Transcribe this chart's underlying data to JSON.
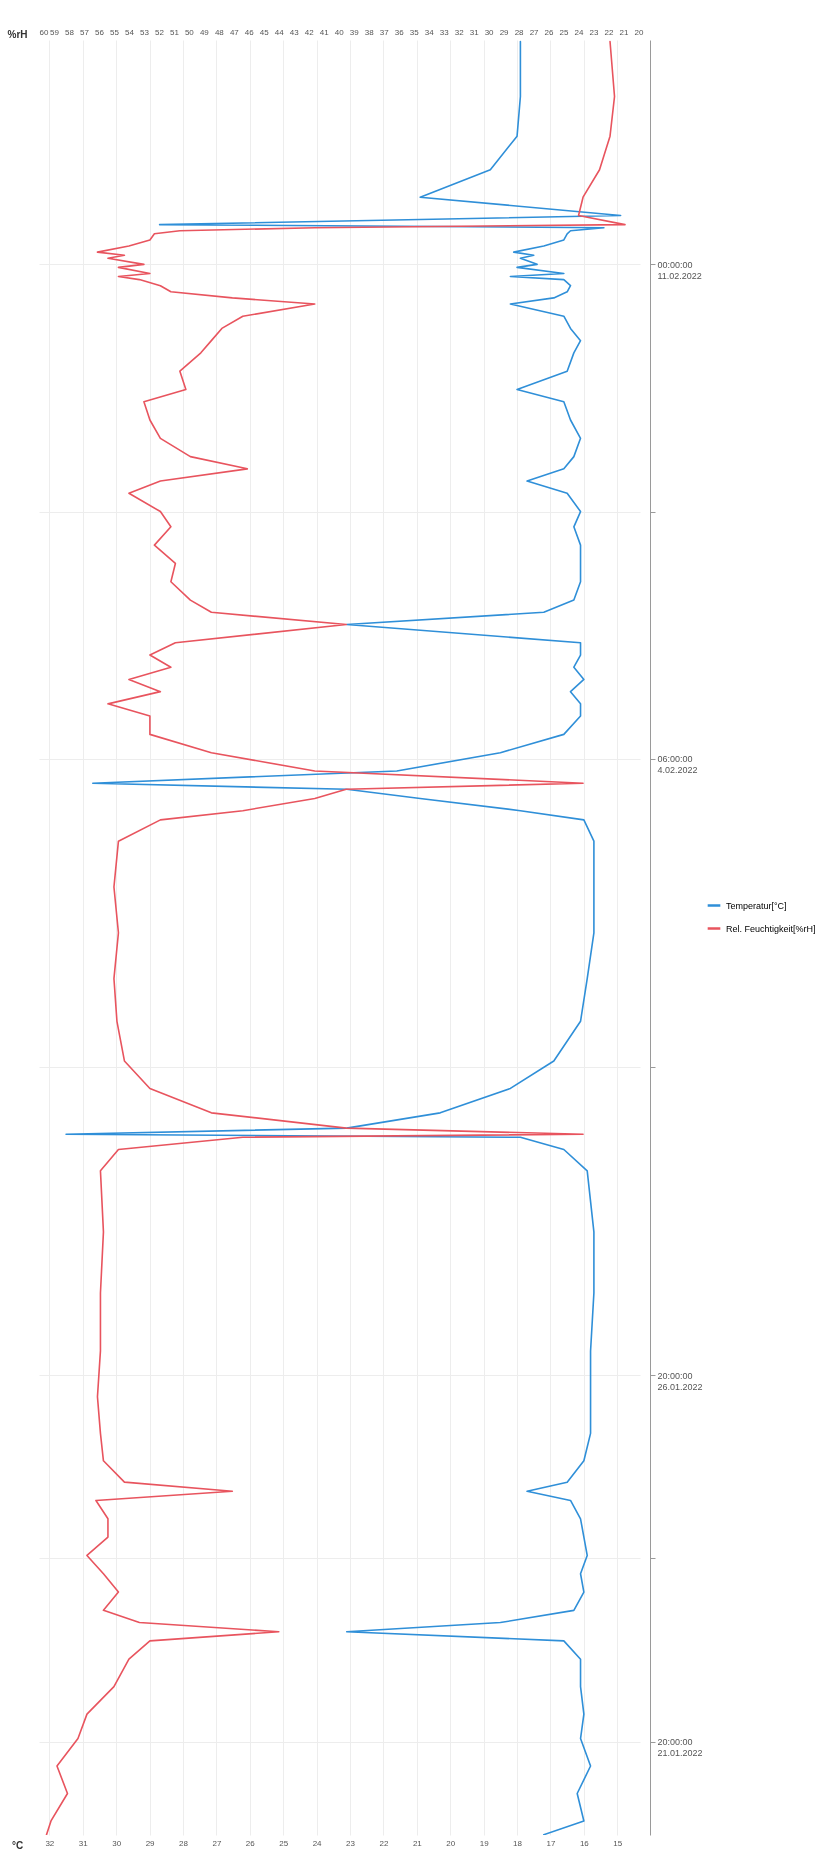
{
  "chart_data": {
    "type": "line",
    "orientation": "horizontal",
    "xlabel": "°C",
    "x2label": "%rH",
    "legend": "right",
    "grid": true,
    "x": [
      "2022-01-20T13:30",
      "2022-01-20T18:00",
      "2022-01-21T03:00",
      "2022-01-21T12:00",
      "2022-01-21T21:00",
      "2022-01-22T05:00",
      "2022-01-22T14:00",
      "2022-01-22T23:00",
      "2022-01-23T05:00",
      "2022-01-23T08:00",
      "2022-01-23T11:00",
      "2022-01-23T15:00",
      "2022-01-23T21:00",
      "2022-01-24T03:00",
      "2022-01-24T09:00",
      "2022-01-24T15:00",
      "2022-01-24T21:00",
      "2022-01-25T03:00",
      "2022-01-25T06:00",
      "2022-01-25T09:00",
      "2022-01-25T16:00",
      "2022-01-26T01:00",
      "2022-01-26T13:00",
      "2022-01-27T04:00",
      "2022-01-27T23:00",
      "2022-01-28T19:00",
      "2022-01-29T15:00",
      "2022-01-29T22:00",
      "2022-01-30T02:00",
      "2022-01-30T03:00",
      "2022-01-30T05:00",
      "2022-01-30T10:00",
      "2022-01-30T18:00",
      "2022-01-31T03:00",
      "2022-01-31T16:00",
      "2022-02-01T06:00",
      "2022-02-01T21:00",
      "2022-02-02T12:00",
      "2022-02-03T03:00",
      "2022-02-03T10:00",
      "2022-02-03T13:00",
      "2022-02-03T17:00",
      "2022-02-03T20:00",
      "2022-02-03T22:00",
      "2022-02-04T02:00",
      "2022-02-04T08:00",
      "2022-02-04T14:00",
      "2022-02-04T20:00",
      "2022-02-05T00:00",
      "2022-02-05T04:00",
      "2022-02-05T08:00",
      "2022-02-05T12:00",
      "2022-02-05T16:00",
      "2022-02-05T20:00",
      "2022-02-06T02:00",
      "2022-02-06T06:00",
      "2022-02-06T10:00",
      "2022-02-06T16:00",
      "2022-02-06T22:00",
      "2022-02-07T04:00",
      "2022-02-07T10:00",
      "2022-02-07T15:00",
      "2022-02-07T21:00",
      "2022-02-08T01:00",
      "2022-02-08T05:00",
      "2022-02-08T09:00",
      "2022-02-08T15:00",
      "2022-02-08T21:00",
      "2022-02-09T03:00",
      "2022-02-09T07:00",
      "2022-02-09T13:00",
      "2022-02-09T19:00",
      "2022-02-09T23:00",
      "2022-02-10T03:00",
      "2022-02-10T07:00",
      "2022-02-10T11:00",
      "2022-02-10T13:00",
      "2022-02-10T15:00",
      "2022-02-10T17:00",
      "2022-02-10T19:00",
      "2022-02-10T20:00",
      "2022-02-10T21:00",
      "2022-02-10T23:00",
      "2022-02-11T00:00",
      "2022-02-11T02:00",
      "2022-02-11T03:00",
      "2022-02-11T04:00",
      "2022-02-11T06:00",
      "2022-02-11T08:00",
      "2022-02-11T10:00",
      "2022-02-11T11:00",
      "2022-02-11T12:00",
      "2022-02-11T13:00",
      "2022-02-11T16:00",
      "2022-02-11T22:00",
      "2022-02-12T07:00",
      "2022-02-12T18:00",
      "2022-02-13T07:00",
      "2022-02-14T01:00"
    ],
    "series": [
      {
        "name": "Temperatur[°C]",
        "color": "#2f8fd8",
        "values": [
          17.2,
          16.0,
          16.2,
          15.8,
          16.1,
          16.0,
          16.1,
          16.1,
          16.6,
          23.1,
          18.5,
          16.3,
          16.0,
          16.1,
          15.9,
          16.0,
          16.1,
          16.4,
          17.7,
          16.5,
          16.0,
          15.8,
          15.8,
          15.8,
          15.7,
          15.7,
          15.9,
          16.6,
          17.9,
          31.5,
          23.1,
          20.3,
          18.2,
          16.9,
          16.1,
          15.9,
          15.7,
          15.7,
          15.7,
          16.0,
          17.9,
          20.9,
          23.1,
          30.7,
          21.6,
          18.5,
          16.6,
          16.1,
          16.1,
          16.4,
          16.0,
          16.3,
          16.1,
          16.1,
          23.1,
          17.2,
          16.3,
          16.1,
          16.1,
          16.1,
          16.3,
          16.1,
          16.5,
          17.7,
          16.6,
          16.3,
          16.1,
          16.4,
          16.6,
          18.0,
          16.5,
          16.3,
          16.1,
          16.4,
          16.6,
          18.2,
          16.9,
          16.5,
          16.4,
          16.6,
          18.2,
          16.6,
          18.0,
          17.4,
          17.9,
          17.5,
          18.1,
          17.2,
          16.6,
          16.5,
          16.4,
          15.4,
          28.7,
          14.9,
          20.9,
          18.8,
          18.0,
          17.9,
          17.9
        ]
      },
      {
        "name": "Rel. Feuchtigkeit[%rH]",
        "color": "#e8545e",
        "axis": "x2",
        "values": [
          59.5,
          59.2,
          58.1,
          58.8,
          57.4,
          56.8,
          55.0,
          54.0,
          52.6,
          44.0,
          53.3,
          55.7,
          54.7,
          55.7,
          56.8,
          55.4,
          55.4,
          56.2,
          47.1,
          54.3,
          55.7,
          55.9,
          56.1,
          55.9,
          55.9,
          55.7,
          55.9,
          54.7,
          46.4,
          23.7,
          39.5,
          48.5,
          52.6,
          54.3,
          54.8,
          55.0,
          54.7,
          55.0,
          54.7,
          51.9,
          46.4,
          41.6,
          39.5,
          23.7,
          41.6,
          48.5,
          52.6,
          52.6,
          55.4,
          51.9,
          54.0,
          51.2,
          52.6,
          50.9,
          39.5,
          48.5,
          49.9,
          51.2,
          50.9,
          52.3,
          51.2,
          51.9,
          54.0,
          51.9,
          46.1,
          49.9,
          51.9,
          52.6,
          53.0,
          50.2,
          50.6,
          49.2,
          48.5,
          47.8,
          46.4,
          41.6,
          47.1,
          51.2,
          51.9,
          53.3,
          54.7,
          52.6,
          54.7,
          53.0,
          55.4,
          54.3,
          56.1,
          54.0,
          52.6,
          52.3,
          50.6,
          41.6,
          20.9,
          24.0,
          23.7,
          22.6,
          21.9,
          21.6,
          21.9
        ]
      }
    ],
    "ylim": [
      "2022-01-20T13:24",
      "2022-02-14T01:30"
    ],
    "yticks": [
      {
        "value": "2022-01-21T20:00",
        "label": "20:00:00\n21.01.2022"
      },
      {
        "value": "2022-01-24T08:00",
        "label": null
      },
      {
        "value": "2022-01-26T20:00",
        "label": "20:00:00\n26.01.2022"
      },
      {
        "value": "2022-01-31T01:00",
        "label": null
      },
      {
        "value": "2022-02-04T06:00",
        "label": "06:00:00\n4.02.2022"
      },
      {
        "value": "2022-02-07T15:00",
        "label": null
      },
      {
        "value": "2022-02-11T00:00",
        "label": "00:00:00\n11.02.2022"
      }
    ],
    "xlim": [
      32.31,
      14.32
    ],
    "xticks": [
      15,
      16,
      17,
      18,
      19,
      20,
      21,
      22,
      23,
      24,
      25,
      26,
      27,
      28,
      29,
      30,
      31,
      32
    ],
    "x2lim": [
      60,
      19.9
    ],
    "x2ticks": [
      20,
      21,
      22,
      23,
      24,
      25,
      26,
      27,
      28,
      29,
      30,
      31,
      32,
      33,
      34,
      35,
      36,
      37,
      38,
      39,
      40,
      41,
      42,
      43,
      44,
      45,
      46,
      47,
      48,
      49,
      50,
      51,
      52,
      53,
      54,
      55,
      56,
      57,
      58,
      59,
      60
    ]
  }
}
